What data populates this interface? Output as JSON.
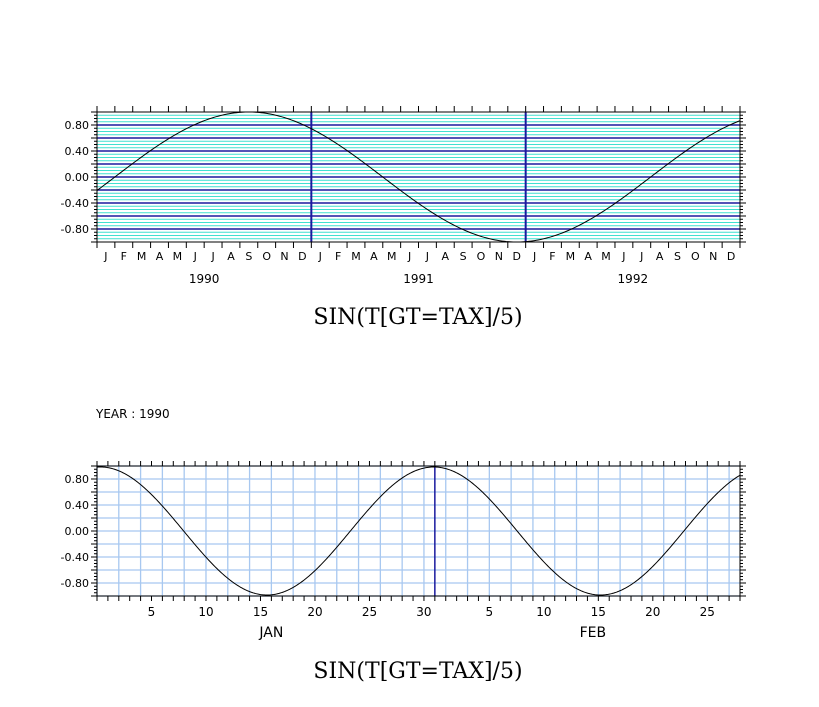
{
  "chart_data": [
    {
      "type": "line",
      "title": "SIN(T[GT=TAX]/5)",
      "xlabel": "",
      "ylabel": "",
      "ylim": [
        -1.0,
        1.0
      ],
      "yticks": [
        "0.80",
        "0.40",
        "0.00",
        "-0.40",
        "-0.80"
      ],
      "month_ticks": [
        "J",
        "F",
        "M",
        "A",
        "M",
        "J",
        "J",
        "A",
        "S",
        "O",
        "N",
        "D"
      ],
      "years": [
        "1990",
        "1991",
        "1992"
      ],
      "grid": true,
      "grid_colors": {
        "major": "#1a1a9e",
        "minor": "#40e0d0",
        "fine": "#a8c8f0"
      },
      "series": [
        {
          "x": [
            "1990-01",
            "1990-09",
            "1991-12",
            "1992-12"
          ],
          "y": [
            -0.1,
            1.0,
            -1.0,
            0.72
          ]
        }
      ]
    },
    {
      "type": "line",
      "title": "SIN(T[GT=TAX]/5)",
      "annotation": "YEAR : 1990",
      "xlabel": "",
      "ylabel": "",
      "ylim": [
        -1.0,
        1.0
      ],
      "yticks": [
        "0.80",
        "0.40",
        "0.00",
        "-0.40",
        "-0.80"
      ],
      "day_ticks_jan": [
        "5",
        "10",
        "15",
        "20",
        "25",
        "30"
      ],
      "day_ticks_feb": [
        "5",
        "10",
        "15",
        "20",
        "25"
      ],
      "months": [
        "JAN",
        "FEB"
      ],
      "grid": true,
      "grid_colors": {
        "major": "#1a1a9e",
        "fine": "#a8c8f0"
      },
      "series": [
        {
          "x": [
            1,
            15,
            30,
            46,
            59
          ],
          "y": [
            0.96,
            -1.0,
            0.96,
            -1.0,
            0.84
          ]
        }
      ]
    }
  ]
}
